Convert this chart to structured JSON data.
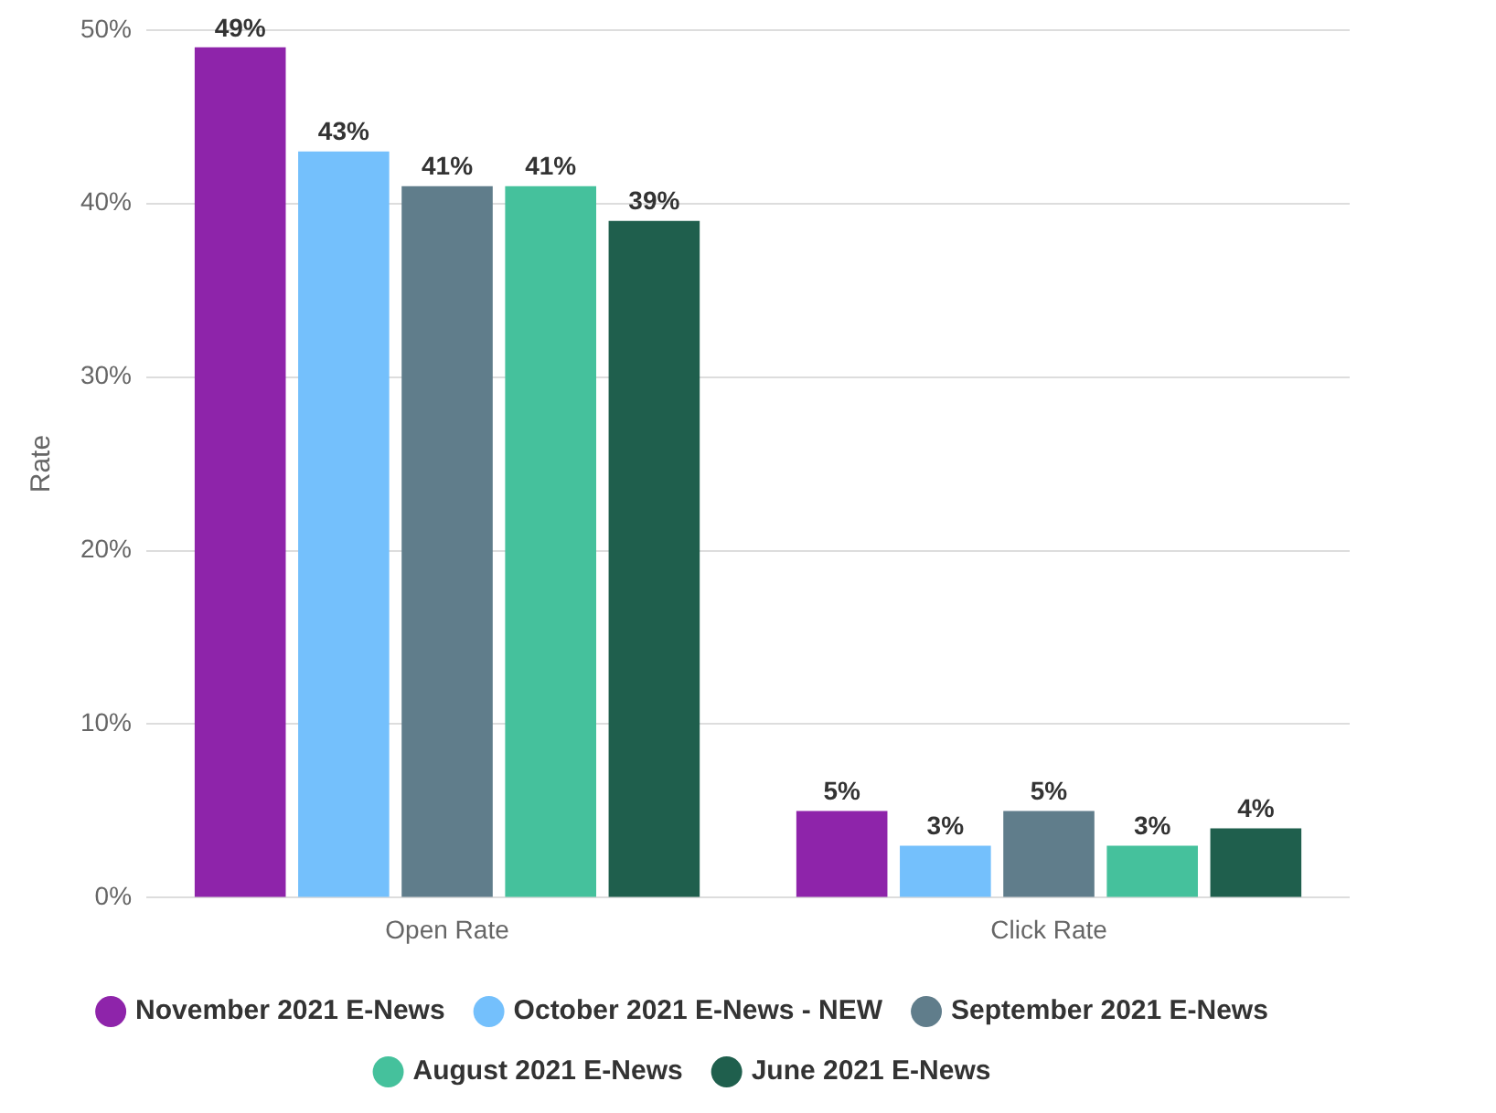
{
  "chart_data": {
    "type": "bar",
    "ylabel": "Rate",
    "categories": [
      "Open Rate",
      "Click Rate"
    ],
    "series": [
      {
        "name": "November 2021 E-News",
        "color": "#8e24aa",
        "values": [
          49,
          5
        ],
        "value_labels": [
          "49%",
          "5%"
        ]
      },
      {
        "name": "October 2021 E-News - NEW",
        "color": "#74c0fc",
        "values": [
          43,
          3
        ],
        "value_labels": [
          "43%",
          "3%"
        ]
      },
      {
        "name": "September 2021 E-News",
        "color": "#607d8b",
        "values": [
          41,
          5
        ],
        "value_labels": [
          "41%",
          "5%"
        ]
      },
      {
        "name": "August 2021 E-News",
        "color": "#45c19c",
        "values": [
          41,
          3
        ],
        "value_labels": [
          "41%",
          "3%"
        ]
      },
      {
        "name": "June 2021 E-News",
        "color": "#1f5f4d",
        "values": [
          39,
          4
        ],
        "value_labels": [
          "39%",
          "4%"
        ]
      }
    ],
    "ylim": [
      0,
      50
    ],
    "yticks": [
      {
        "value": 0,
        "label": "0%"
      },
      {
        "value": 10,
        "label": "10%"
      },
      {
        "value": 20,
        "label": "20%"
      },
      {
        "value": 30,
        "label": "30%"
      },
      {
        "value": 40,
        "label": "40%"
      },
      {
        "value": 50,
        "label": "50%"
      }
    ],
    "grid": "y",
    "legend": "bottom"
  }
}
